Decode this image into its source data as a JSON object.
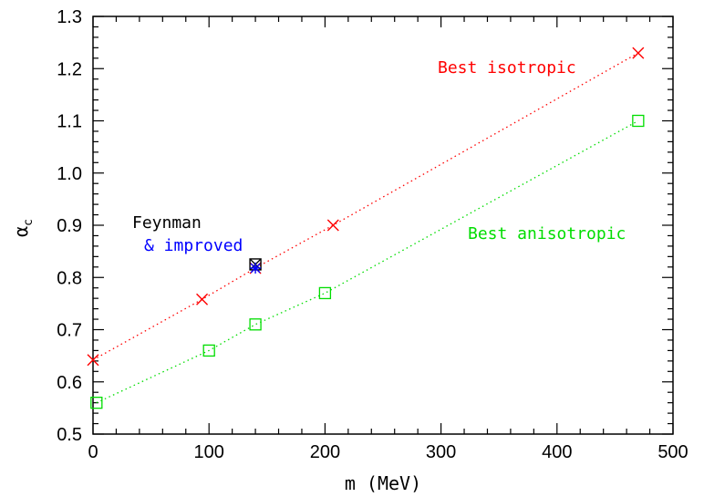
{
  "chart_data": {
    "type": "scatter",
    "xlabel": "m (MeV)",
    "ylabel": "α",
    "ylabel_sub": "c",
    "xlim": [
      0,
      500
    ],
    "ylim": [
      0.5,
      1.3
    ],
    "xticks": [
      "0",
      "100",
      "200",
      "300",
      "400",
      "500"
    ],
    "yticks": [
      "0.5",
      "0.6",
      "0.7",
      "0.8",
      "0.9",
      "1.0",
      "1.1",
      "1.2",
      "1.3"
    ],
    "grid": false,
    "series": [
      {
        "name": "Best isotropic",
        "marker": "cross",
        "line": "dotted",
        "color": "#ff0000",
        "x": [
          0,
          94,
          140,
          207,
          470
        ],
        "y": [
          0.642,
          0.758,
          0.818,
          0.9,
          1.23
        ]
      },
      {
        "name": "Best anisotropic",
        "marker": "square",
        "line": "dotted",
        "color": "#00dd00",
        "x": [
          3,
          100,
          140,
          200,
          470
        ],
        "y": [
          0.56,
          0.66,
          0.71,
          0.77,
          1.1
        ]
      },
      {
        "name": "Feynman",
        "marker": "square-x",
        "line": "none",
        "color": "#000000",
        "x": [
          140
        ],
        "y": [
          0.825
        ]
      },
      {
        "name": "& improved",
        "marker": "plus-x",
        "line": "none",
        "color": "#0000ff",
        "x": [
          140
        ],
        "y": [
          0.818
        ]
      }
    ],
    "annotations": [
      {
        "text": "Best isotropic",
        "color": "#ff0000"
      },
      {
        "text": "Best anisotropic",
        "color": "#00dd00"
      },
      {
        "text": "Feynman",
        "color": "#000000"
      },
      {
        "text": "& improved",
        "color": "#0000ff"
      }
    ]
  }
}
